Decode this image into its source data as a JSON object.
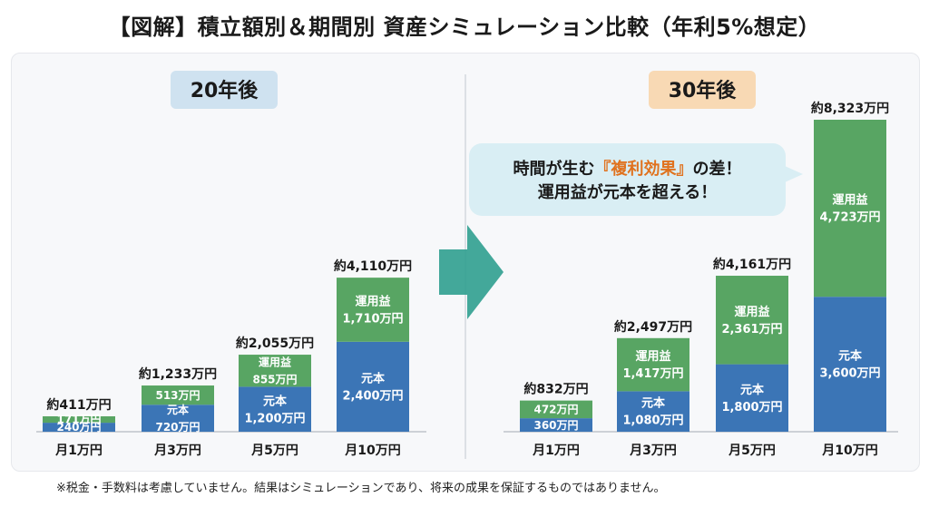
{
  "title": "【図解】積立額別＆期間別 資産シミュレーション比較（年利5%想定）",
  "callout": {
    "pre": "時間が生む",
    "highlight": "『複利効果』",
    "post": "の差！",
    "line2": "運用益が元本を超える！"
  },
  "footnote": "※税金・手数料は考慮していません。結果はシミュレーションであり、将来の成果を保証するものではありません。",
  "colors": {
    "principal": "#3b75b6",
    "gain": "#58a563",
    "label20": "#cfe2f0",
    "label30": "#f8d9b4",
    "arrow": "#2f9e8f"
  },
  "chart_data": [
    {
      "type": "bar",
      "stacked": true,
      "title": "20年後",
      "categories": [
        "月1万円",
        "月3万円",
        "月5万円",
        "月10万円"
      ],
      "series": [
        {
          "name": "元本",
          "values": [
            240,
            720,
            1200,
            2400
          ]
        },
        {
          "name": "運用益",
          "values": [
            171,
            513,
            855,
            1710
          ]
        }
      ],
      "totals": [
        411,
        1233,
        2055,
        4110
      ],
      "total_labels": [
        "約411万円",
        "約1,233万円",
        "約2,055万円",
        "約4,110万円"
      ],
      "principal_labels": [
        "240万円",
        "元本\n720万円",
        "元本\n1,200万円",
        "元本\n2,400万円"
      ],
      "gain_labels": [
        "171万円",
        "513万円",
        "運用益\n855万円",
        "運用益\n1,710万円"
      ],
      "ylim": [
        0,
        8323
      ]
    },
    {
      "type": "bar",
      "stacked": true,
      "title": "30年後",
      "categories": [
        "月1万円",
        "月3万円",
        "月5万円",
        "月10万円"
      ],
      "series": [
        {
          "name": "元本",
          "values": [
            360,
            1080,
            1800,
            3600
          ]
        },
        {
          "name": "運用益",
          "values": [
            472,
            1417,
            2361,
            4723
          ]
        }
      ],
      "totals": [
        832,
        2497,
        4161,
        8323
      ],
      "total_labels": [
        "約832万円",
        "約2,497万円",
        "約4,161万円",
        "約8,323万円"
      ],
      "principal_labels": [
        "360万円",
        "元本\n1,080万円",
        "元本\n1,800万円",
        "元本\n3,600万円"
      ],
      "gain_labels": [
        "472万円",
        "運用益\n1,417万円",
        "運用益\n2,361万円",
        "運用益\n4,723万円"
      ],
      "ylim": [
        0,
        8323
      ]
    }
  ]
}
